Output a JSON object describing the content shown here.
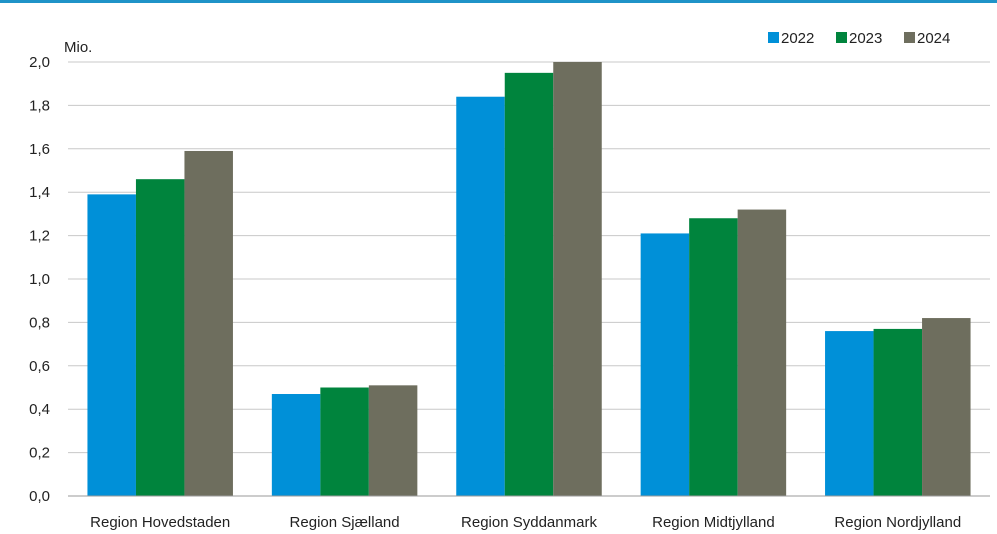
{
  "chart_data": {
    "type": "bar",
    "unit_label": "Mio.",
    "categories": [
      "Region Hovedstaden",
      "Region Sjælland",
      "Region Syddanmark",
      "Region Midtjylland",
      "Region Nordjylland"
    ],
    "series": [
      {
        "name": "2022",
        "color": "#0090d8",
        "values": [
          1.39,
          0.47,
          1.84,
          1.21,
          0.76
        ]
      },
      {
        "name": "2023",
        "color": "#00843d",
        "values": [
          1.46,
          0.5,
          1.95,
          1.28,
          0.77
        ]
      },
      {
        "name": "2024",
        "color": "#6e6e5e",
        "values": [
          1.59,
          0.51,
          2.0,
          1.32,
          0.82
        ]
      }
    ],
    "ylim": [
      0,
      2.0
    ],
    "yticks": [
      "0,0",
      "0,2",
      "0,4",
      "0,6",
      "0,8",
      "1,0",
      "1,2",
      "1,4",
      "1,6",
      "1,8",
      "2,0"
    ],
    "grid": true,
    "legend_position": "top-right"
  }
}
